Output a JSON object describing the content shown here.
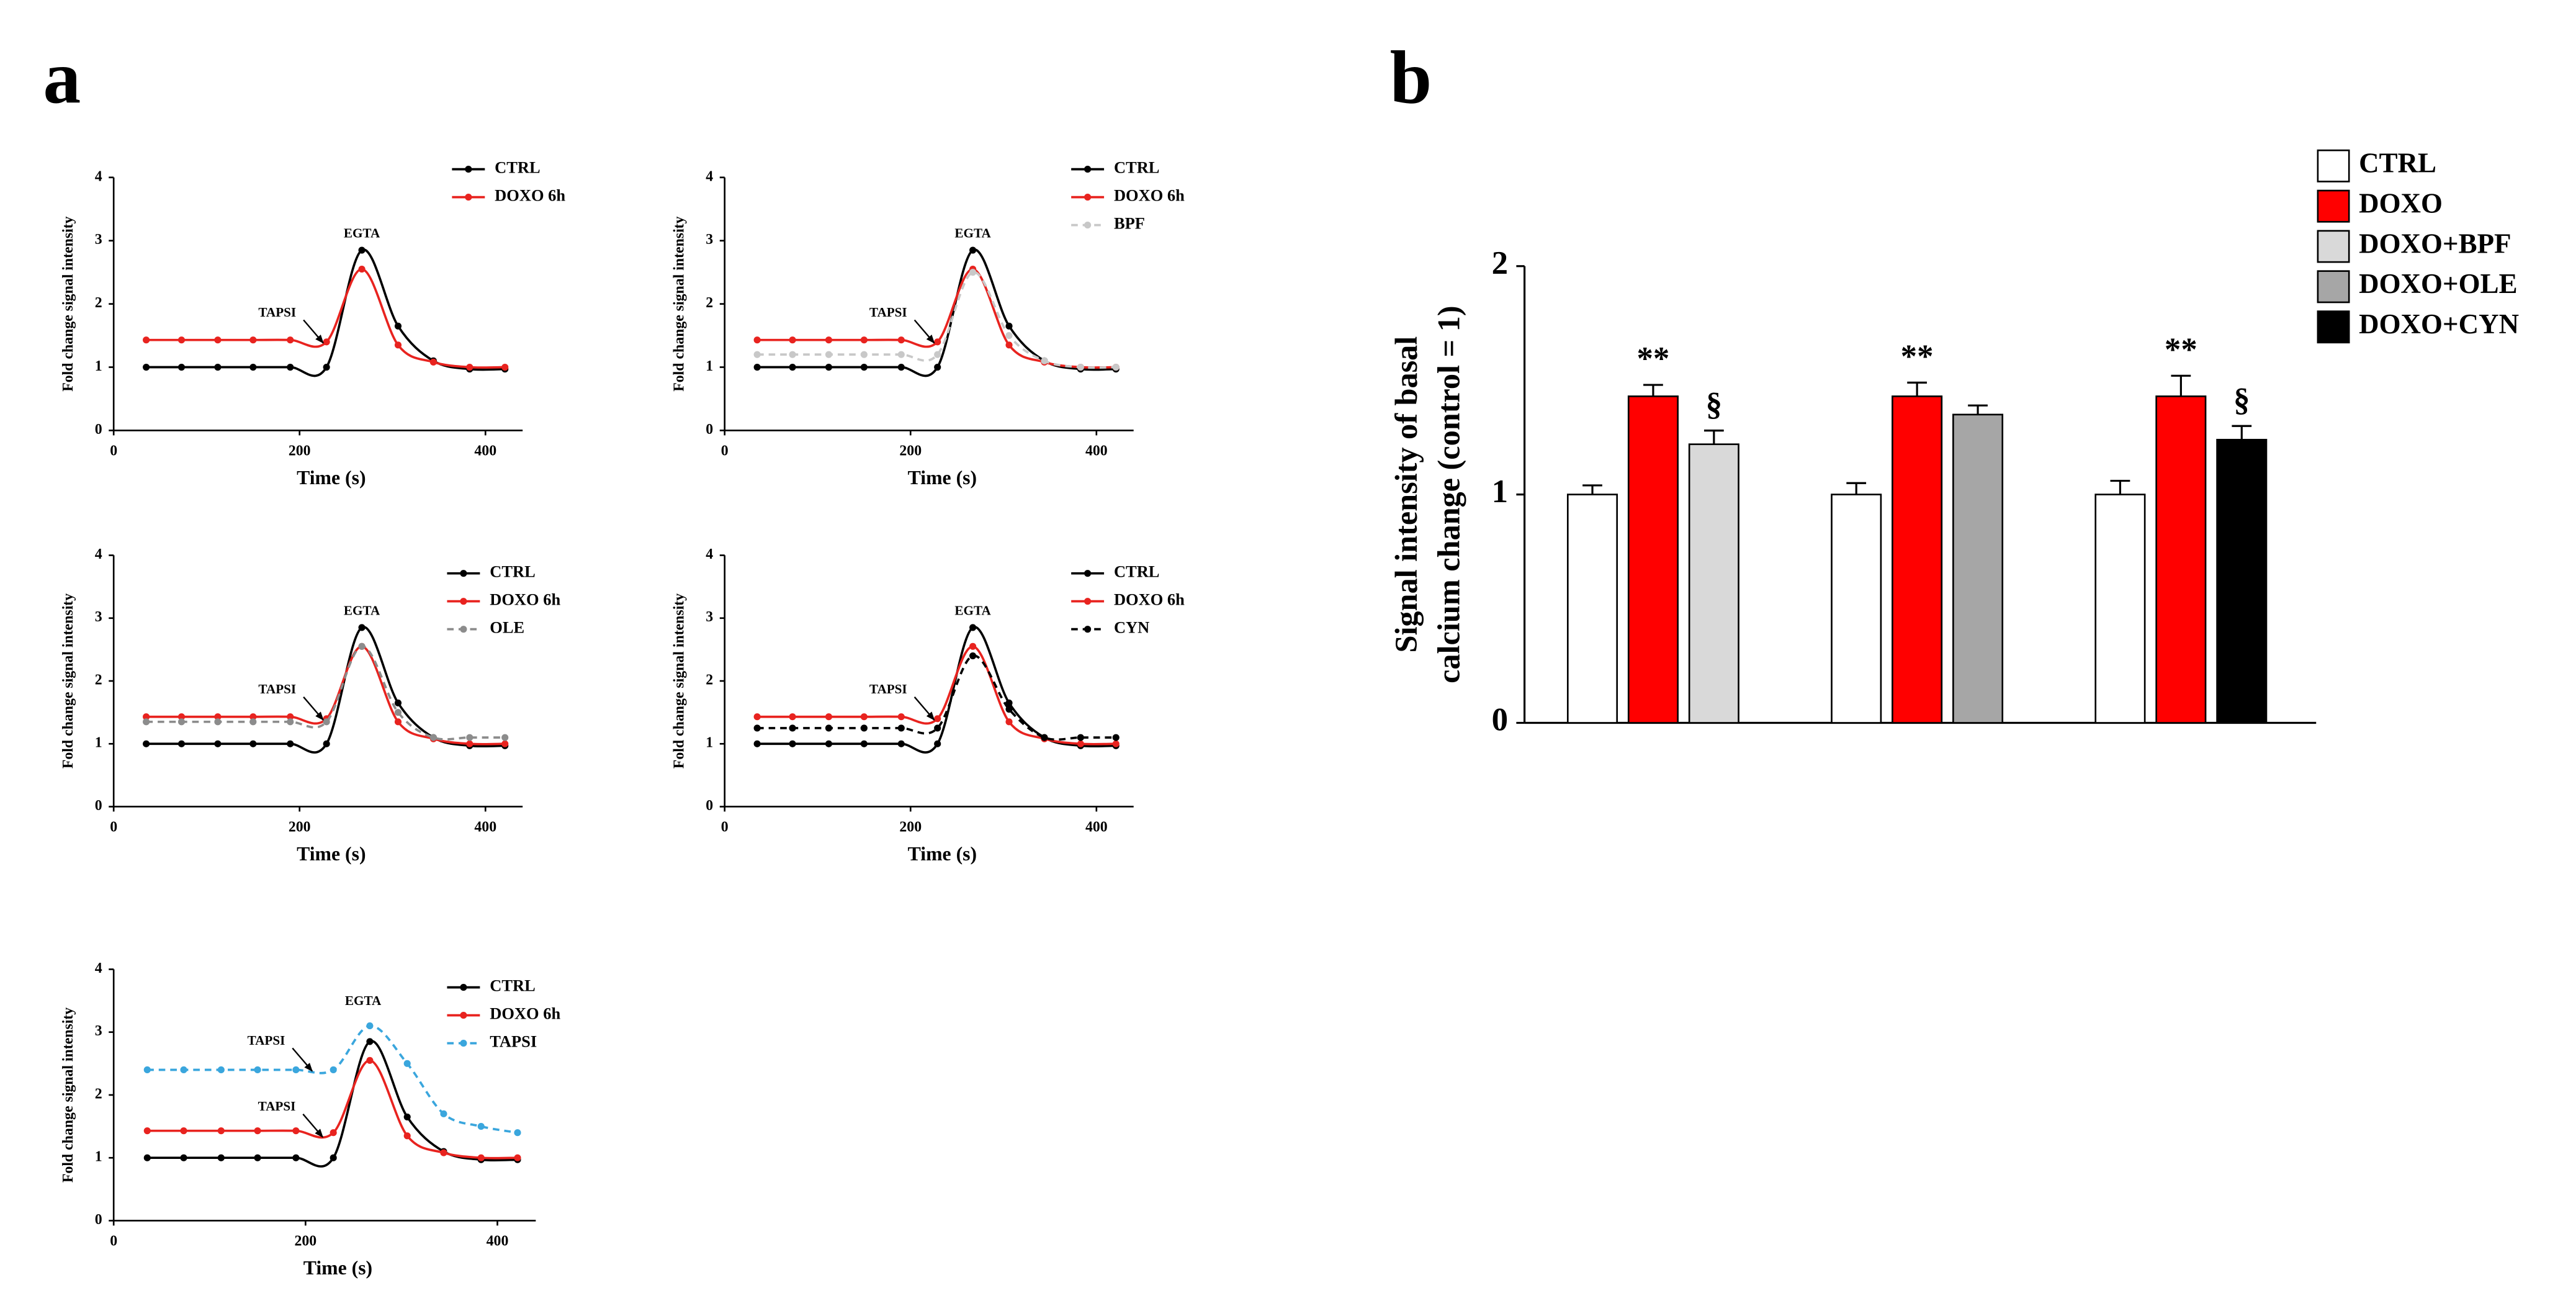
{
  "panel_labels": [
    "a",
    "b"
  ],
  "chart_data": [
    {
      "type": "line",
      "xlabel": "Time (s)",
      "ylabel": "Fold change signal intensity",
      "x": [
        35,
        73,
        112,
        150,
        190,
        229,
        267,
        306,
        344,
        383,
        421
      ],
      "xlim": [
        0,
        440
      ],
      "xticks": [
        0,
        200,
        400
      ],
      "ylim": [
        0,
        4
      ],
      "yticks": [
        0,
        1,
        2,
        3,
        4
      ],
      "series": [
        {
          "name": "CTRL",
          "color": "#000000",
          "dash": false,
          "values": [
            1,
            1,
            1,
            1,
            1,
            1,
            2.85,
            1.65,
            1.1,
            0.97,
            0.97
          ]
        },
        {
          "name": "DOXO 6h",
          "color": "#e8231f",
          "dash": false,
          "values": [
            1.43,
            1.43,
            1.43,
            1.43,
            1.43,
            1.4,
            2.55,
            1.35,
            1.08,
            1.0,
            1.0
          ]
        }
      ],
      "annotations": [
        {
          "text": "EGTA",
          "x": 267,
          "y": 3.1,
          "arrow": false
        },
        {
          "text": "TAPSI",
          "x": 176,
          "y": 1.85,
          "arrow": true
        }
      ]
    },
    {
      "type": "line",
      "xlabel": "Time (s)",
      "ylabel": "Fold change signal intensity",
      "x": [
        35,
        73,
        112,
        150,
        190,
        229,
        267,
        306,
        344,
        383,
        421
      ],
      "xlim": [
        0,
        440
      ],
      "xticks": [
        0,
        200,
        400
      ],
      "ylim": [
        0,
        4
      ],
      "yticks": [
        0,
        1,
        2,
        3,
        4
      ],
      "series": [
        {
          "name": "CTRL",
          "color": "#000000",
          "dash": false,
          "values": [
            1,
            1,
            1,
            1,
            1,
            1,
            2.85,
            1.65,
            1.1,
            0.97,
            0.97
          ]
        },
        {
          "name": "DOXO 6h",
          "color": "#e8231f",
          "dash": false,
          "values": [
            1.43,
            1.43,
            1.43,
            1.43,
            1.43,
            1.4,
            2.55,
            1.35,
            1.08,
            1.0,
            1.0
          ]
        },
        {
          "name": "BPF",
          "color": "#c8c8c8",
          "dash": true,
          "values": [
            1.2,
            1.2,
            1.2,
            1.2,
            1.2,
            1.2,
            2.5,
            1.5,
            1.1,
            1.0,
            1.0
          ]
        }
      ],
      "annotations": [
        {
          "text": "EGTA",
          "x": 267,
          "y": 3.1,
          "arrow": false
        },
        {
          "text": "TAPSI",
          "x": 176,
          "y": 1.85,
          "arrow": true
        }
      ]
    },
    {
      "type": "line",
      "xlabel": "Time (s)",
      "ylabel": "Fold change signal intensity",
      "x": [
        35,
        73,
        112,
        150,
        190,
        229,
        267,
        306,
        344,
        383,
        421
      ],
      "xlim": [
        0,
        440
      ],
      "xticks": [
        0,
        200,
        400
      ],
      "ylim": [
        0,
        4
      ],
      "yticks": [
        0,
        1,
        2,
        3,
        4
      ],
      "series": [
        {
          "name": "CTRL",
          "color": "#000000",
          "dash": false,
          "values": [
            1,
            1,
            1,
            1,
            1,
            1,
            2.85,
            1.65,
            1.1,
            0.97,
            0.97
          ]
        },
        {
          "name": "DOXO 6h",
          "color": "#e8231f",
          "dash": false,
          "values": [
            1.43,
            1.43,
            1.43,
            1.43,
            1.43,
            1.4,
            2.55,
            1.35,
            1.08,
            1.0,
            1.0
          ]
        },
        {
          "name": "OLE",
          "color": "#8c8c8c",
          "dash": true,
          "values": [
            1.35,
            1.35,
            1.35,
            1.35,
            1.35,
            1.35,
            2.55,
            1.5,
            1.1,
            1.1,
            1.1
          ]
        }
      ],
      "annotations": [
        {
          "text": "EGTA",
          "x": 267,
          "y": 3.1,
          "arrow": false
        },
        {
          "text": "TAPSI",
          "x": 176,
          "y": 1.85,
          "arrow": true
        }
      ]
    },
    {
      "type": "line",
      "xlabel": "Time (s)",
      "ylabel": "Fold change signal intensity",
      "x": [
        35,
        73,
        112,
        150,
        190,
        229,
        267,
        306,
        344,
        383,
        421
      ],
      "xlim": [
        0,
        440
      ],
      "xticks": [
        0,
        200,
        400
      ],
      "ylim": [
        0,
        4
      ],
      "yticks": [
        0,
        1,
        2,
        3,
        4
      ],
      "series": [
        {
          "name": "CTRL",
          "color": "#000000",
          "dash": false,
          "values": [
            1,
            1,
            1,
            1,
            1,
            1,
            2.85,
            1.65,
            1.1,
            0.97,
            0.97
          ]
        },
        {
          "name": "DOXO 6h",
          "color": "#e8231f",
          "dash": false,
          "values": [
            1.43,
            1.43,
            1.43,
            1.43,
            1.43,
            1.4,
            2.55,
            1.35,
            1.08,
            1.0,
            1.0
          ]
        },
        {
          "name": "CYN",
          "color": "#000000",
          "dash": true,
          "values": [
            1.25,
            1.25,
            1.25,
            1.25,
            1.25,
            1.25,
            2.4,
            1.55,
            1.1,
            1.1,
            1.1
          ]
        }
      ],
      "annotations": [
        {
          "text": "EGTA",
          "x": 267,
          "y": 3.1,
          "arrow": false
        },
        {
          "text": "TAPSI",
          "x": 176,
          "y": 1.85,
          "arrow": true
        }
      ]
    },
    {
      "type": "line",
      "xlabel": "Time (s)",
      "ylabel": "Fold change signal intensity",
      "x": [
        35,
        73,
        112,
        150,
        190,
        229,
        267,
        306,
        344,
        383,
        421
      ],
      "xlim": [
        0,
        440
      ],
      "xticks": [
        0,
        200,
        400
      ],
      "ylim": [
        0,
        4
      ],
      "yticks": [
        0,
        1,
        2,
        3,
        4
      ],
      "series": [
        {
          "name": "CTRL",
          "color": "#000000",
          "dash": false,
          "values": [
            1,
            1,
            1,
            1,
            1,
            1,
            2.85,
            1.65,
            1.1,
            0.97,
            0.97
          ]
        },
        {
          "name": "DOXO 6h",
          "color": "#e8231f",
          "dash": false,
          "values": [
            1.43,
            1.43,
            1.43,
            1.43,
            1.43,
            1.4,
            2.55,
            1.35,
            1.08,
            1.0,
            1.0
          ]
        },
        {
          "name": "TAPSI",
          "color": "#3aa6dd",
          "dash": true,
          "values": [
            2.4,
            2.4,
            2.4,
            2.4,
            2.4,
            2.4,
            3.1,
            2.5,
            1.7,
            1.5,
            1.4
          ]
        }
      ],
      "annotations": [
        {
          "text": "EGTA",
          "x": 260,
          "y": 3.48,
          "arrow": false
        },
        {
          "text": "TAPSI",
          "x": 159,
          "y": 2.85,
          "arrow": true
        },
        {
          "text": "TAPSI",
          "x": 170,
          "y": 1.8,
          "arrow": true
        }
      ]
    },
    {
      "type": "bar",
      "ylabel": [
        "Signal intensity of basal",
        "calcium change (control = 1)"
      ],
      "categories": [
        null,
        null,
        null
      ],
      "ylim": [
        0,
        2
      ],
      "yticks": [
        0,
        1,
        2
      ],
      "series": [
        {
          "name": "CTRL",
          "color": "#ffffff",
          "values": [
            1,
            1,
            1
          ],
          "errors": [
            0.04,
            0.05,
            0.06
          ],
          "significance": [
            null,
            null,
            null
          ]
        },
        {
          "name": "DOXO",
          "color": "#ff0000",
          "values": [
            1.43,
            1.43,
            1.43
          ],
          "errors": [
            0.05,
            0.06,
            0.09
          ],
          "significance": [
            "**",
            "**",
            "**"
          ]
        },
        {
          "name": "DOXO+BPF",
          "color": "#d9d9d9",
          "values": [
            1.22,
            null,
            null
          ],
          "errors": [
            0.06,
            null,
            null
          ],
          "significance": [
            "§",
            null,
            null
          ]
        },
        {
          "name": "DOXO+OLE",
          "color": "#a6a6a6",
          "values": [
            null,
            1.35,
            null
          ],
          "errors": [
            null,
            0.04,
            null
          ],
          "significance": [
            null,
            null,
            null
          ]
        },
        {
          "name": "DOXO+CYN",
          "color": "#000000",
          "values": [
            null,
            null,
            1.24
          ],
          "errors": [
            null,
            null,
            0.06
          ],
          "significance": [
            null,
            null,
            "§"
          ]
        }
      ]
    }
  ]
}
